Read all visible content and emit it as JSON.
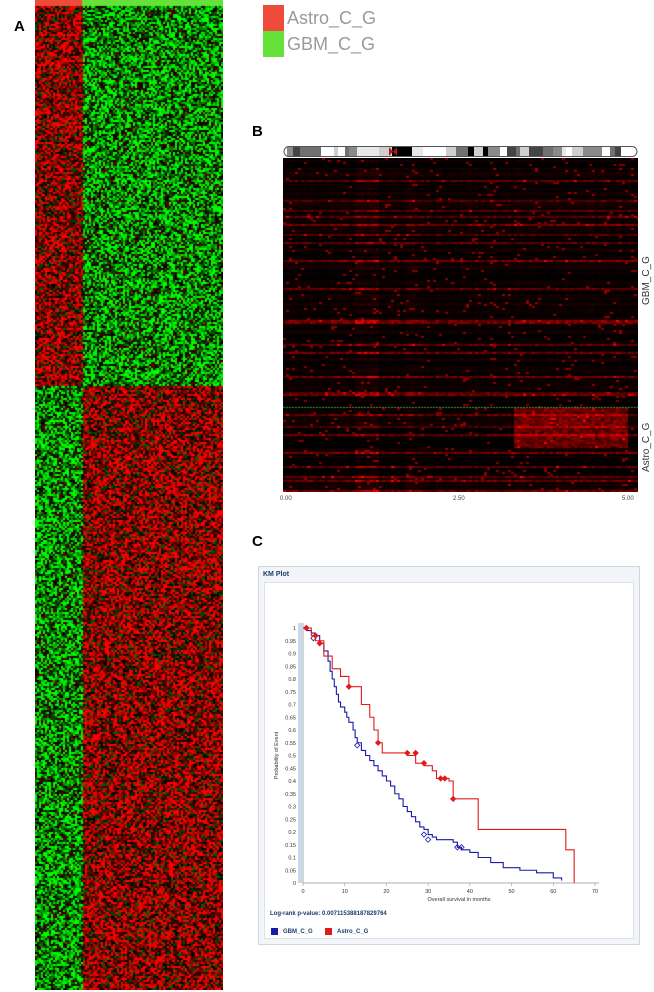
{
  "panels": {
    "a": "A",
    "b": "B",
    "c": "C"
  },
  "legend": [
    {
      "label": "Astro_C_G",
      "color": "#ee4b3a"
    },
    {
      "label": "GBM_C_G",
      "color": "#66e13a"
    }
  ],
  "panel_b": {
    "labels": [
      "GBM_C_G",
      "Astro_C_G"
    ],
    "ticks": [
      "0.00",
      "2.50",
      "5.00"
    ]
  },
  "km": {
    "frame_title": "KM Plot",
    "pvalue": "Log-rank p-value: 0.00711538818782976​4",
    "legend": [
      {
        "label": "GBM_C_G",
        "color": "#1a1aa6"
      },
      {
        "label": "Astro_C_G",
        "color": "#e21a1a"
      }
    ]
  },
  "chart_data": {
    "type": "line",
    "title": "",
    "xlabel": "Overall survival in months",
    "ylabel": "Probability of Event",
    "xlim": [
      0,
      70
    ],
    "ylim": [
      0,
      1
    ],
    "xticks": [
      0,
      10,
      20,
      30,
      40,
      50,
      60,
      70
    ],
    "yticks": [
      0,
      0.05,
      0.1,
      0.15,
      0.2,
      0.25,
      0.3,
      0.35,
      0.4,
      0.45,
      0.5,
      0.55,
      0.6,
      0.65,
      0.7,
      0.75,
      0.8,
      0.85,
      0.9,
      0.95,
      1
    ],
    "step": true,
    "series": [
      {
        "name": "GBM_C_G",
        "color": "#1a1aa6",
        "points": [
          [
            0,
            1
          ],
          [
            1,
            0.99
          ],
          [
            2,
            0.98
          ],
          [
            3,
            0.97
          ],
          [
            4,
            0.94
          ],
          [
            5,
            0.91
          ],
          [
            6,
            0.87
          ],
          [
            6.5,
            0.83
          ],
          [
            7,
            0.8
          ],
          [
            7.5,
            0.77
          ],
          [
            8,
            0.74
          ],
          [
            8.5,
            0.71
          ],
          [
            9,
            0.69
          ],
          [
            10,
            0.67
          ],
          [
            10.5,
            0.65
          ],
          [
            11,
            0.63
          ],
          [
            12,
            0.6
          ],
          [
            12.5,
            0.57
          ],
          [
            13,
            0.55
          ],
          [
            14,
            0.52
          ],
          [
            15,
            0.5
          ],
          [
            16,
            0.48
          ],
          [
            17,
            0.46
          ],
          [
            18,
            0.44
          ],
          [
            19,
            0.42
          ],
          [
            20,
            0.4
          ],
          [
            21,
            0.38
          ],
          [
            22,
            0.35
          ],
          [
            23,
            0.33
          ],
          [
            24,
            0.3
          ],
          [
            25,
            0.28
          ],
          [
            26,
            0.26
          ],
          [
            27,
            0.24
          ],
          [
            28,
            0.22
          ],
          [
            29,
            0.21
          ],
          [
            30,
            0.19
          ],
          [
            31,
            0.18
          ],
          [
            32,
            0.17
          ],
          [
            36,
            0.16
          ],
          [
            37,
            0.14
          ],
          [
            38,
            0.13
          ],
          [
            40,
            0.12
          ],
          [
            42,
            0.1
          ],
          [
            45,
            0.08
          ],
          [
            48,
            0.06
          ],
          [
            52,
            0.05
          ],
          [
            56,
            0.04
          ],
          [
            60,
            0.02
          ],
          [
            62,
            0.01
          ]
        ],
        "censored": [
          [
            0.8,
            1
          ],
          [
            2.5,
            0.96
          ],
          [
            13,
            0.54
          ],
          [
            29,
            0.19
          ],
          [
            30,
            0.17
          ],
          [
            37,
            0.14
          ],
          [
            38,
            0.14
          ]
        ]
      },
      {
        "name": "Astro_C_G",
        "color": "#e21a1a",
        "points": [
          [
            0,
            1
          ],
          [
            1,
            1
          ],
          [
            2,
            0.97
          ],
          [
            3,
            0.95
          ],
          [
            5,
            0.89
          ],
          [
            7,
            0.84
          ],
          [
            9,
            0.81
          ],
          [
            11,
            0.77
          ],
          [
            14,
            0.7
          ],
          [
            16,
            0.65
          ],
          [
            17,
            0.6
          ],
          [
            18,
            0.55
          ],
          [
            19,
            0.51
          ],
          [
            25,
            0.5
          ],
          [
            27,
            0.47
          ],
          [
            29,
            0.46
          ],
          [
            31,
            0.44
          ],
          [
            32,
            0.41
          ],
          [
            35,
            0.4
          ],
          [
            36,
            0.33
          ],
          [
            42,
            0.21
          ],
          [
            63,
            0.13
          ],
          [
            65,
            0
          ]
        ],
        "censored": [
          [
            0.8,
            1
          ],
          [
            3,
            0.97
          ],
          [
            4,
            0.94
          ],
          [
            11,
            0.77
          ],
          [
            18,
            0.55
          ],
          [
            25,
            0.51
          ],
          [
            27,
            0.51
          ],
          [
            29,
            0.47
          ],
          [
            33,
            0.41
          ],
          [
            34,
            0.41
          ],
          [
            36,
            0.33
          ]
        ]
      }
    ]
  }
}
